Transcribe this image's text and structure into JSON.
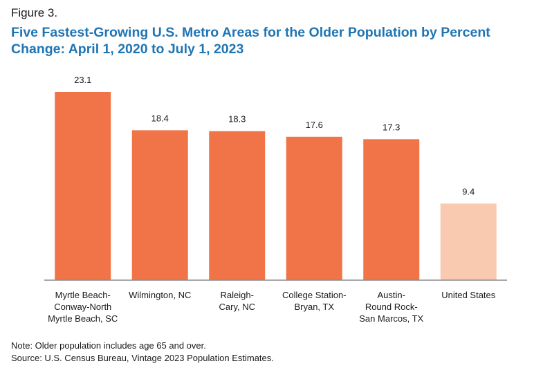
{
  "figure_label": "Figure 3.",
  "footnotes": {
    "note": "Note: Older population includes age 65 and over.",
    "source": "Source: U.S. Census Bureau, Vintage 2023 Population Estimates."
  },
  "colors": {
    "primary_bar": "#f07447",
    "highlight_bar": "#f9c9b0",
    "title": "#1e75b5",
    "axis": "#8c8c8c"
  },
  "chart_data": {
    "type": "bar",
    "title": "Five Fastest-Growing U.S. Metro Areas for the Older Population by Percent Change: April 1, 2020 to July 1, 2023",
    "xlabel": "",
    "ylabel": "",
    "ylim": [
      0,
      23.1
    ],
    "grid": false,
    "categories": [
      "Myrtle Beach-Conway-North Myrtle Beach, SC",
      "Wilmington, NC",
      "Raleigh-Cary, NC",
      "College Station-Bryan, TX",
      "Austin-Round Rock-San Marcos, TX",
      "United States"
    ],
    "category_lines": [
      [
        "Myrtle Beach-",
        "Conway-North",
        "Myrtle Beach, SC"
      ],
      [
        "Wilmington, NC"
      ],
      [
        "Raleigh-",
        "Cary, NC"
      ],
      [
        "College Station-",
        "Bryan, TX"
      ],
      [
        "Austin-",
        "Round Rock-",
        "San Marcos, TX"
      ],
      [
        "United States"
      ]
    ],
    "values": [
      23.1,
      18.4,
      18.3,
      17.6,
      17.3,
      9.4
    ],
    "value_labels": [
      "23.1",
      "18.4",
      "18.3",
      "17.6",
      "17.3",
      "9.4"
    ],
    "highlight": [
      false,
      false,
      false,
      false,
      false,
      true
    ]
  }
}
